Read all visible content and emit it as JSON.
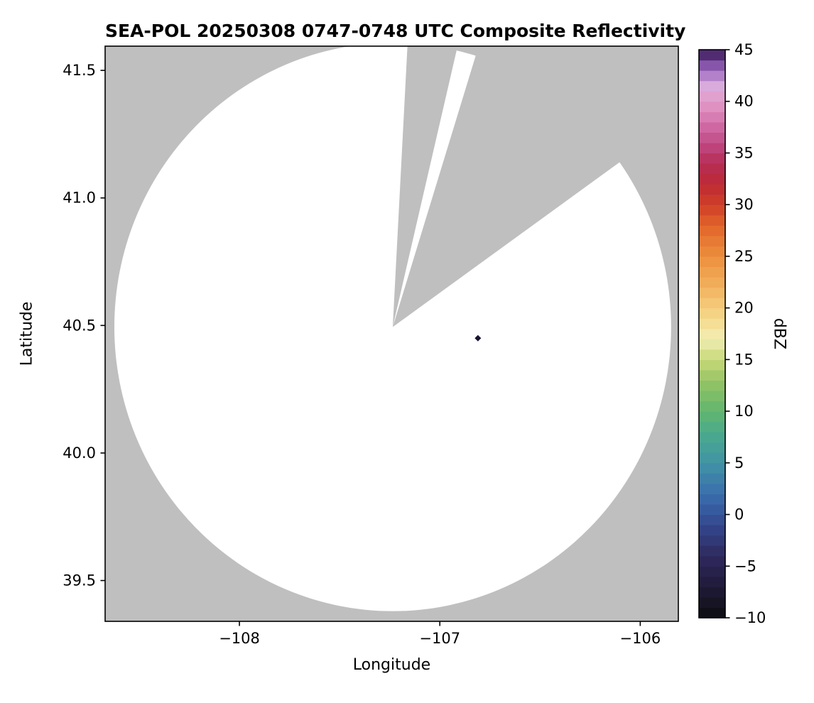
{
  "chart_data": {
    "type": "heatmap",
    "title": "SEA-POL 20250308 0747-0748 UTC Composite Reflectivity",
    "xlabel": "Longitude",
    "ylabel": "Latitude",
    "xlim": [
      -108.67,
      -105.81
    ],
    "ylim": [
      39.34,
      41.595
    ],
    "xticks": [
      -108,
      -107,
      -106
    ],
    "xtick_labels": [
      "−108",
      "−107",
      "−106"
    ],
    "yticks": [
      39.5,
      40.0,
      40.5,
      41.0,
      41.5
    ],
    "ytick_labels": [
      "39.5",
      "40.0",
      "40.5",
      "41.0",
      "41.5"
    ],
    "no_data_color": "#bfbfbf",
    "axis_color": "#000000",
    "radar": {
      "center_lon": -107.235,
      "center_lat": 40.494,
      "radius_lon_deg": 1.389,
      "radius_lat_deg": 1.114,
      "coverage_color": "#ffffff",
      "blocked_sectors_screen_deg": [
        [
          3,
          13
        ],
        [
          17,
          54
        ]
      ],
      "marker": {
        "lon": -106.81,
        "lat": 40.45,
        "color": "#16142f"
      }
    },
    "colorbar": {
      "label": "dBZ",
      "min": -10,
      "max": 45,
      "ticks": [
        -10,
        -5,
        0,
        5,
        10,
        15,
        20,
        25,
        30,
        35,
        40,
        45
      ],
      "tick_labels": [
        "−10",
        "−5",
        "0",
        "5",
        "10",
        "15",
        "20",
        "25",
        "30",
        "35",
        "40",
        "45"
      ],
      "stops": [
        {
          "v": -10,
          "c": "#0d0d10"
        },
        {
          "v": -7,
          "c": "#201a38"
        },
        {
          "v": -4,
          "c": "#2e2a5e"
        },
        {
          "v": -1,
          "c": "#34478f"
        },
        {
          "v": 2,
          "c": "#3a6fae"
        },
        {
          "v": 5,
          "c": "#4093a4"
        },
        {
          "v": 8,
          "c": "#4bab8b"
        },
        {
          "v": 10,
          "c": "#61b56e"
        },
        {
          "v": 13,
          "c": "#97c465"
        },
        {
          "v": 15,
          "c": "#c8d977"
        },
        {
          "v": 17,
          "c": "#f0eeb4"
        },
        {
          "v": 19,
          "c": "#f6d98b"
        },
        {
          "v": 22,
          "c": "#f2b25f"
        },
        {
          "v": 25,
          "c": "#ec8f3d"
        },
        {
          "v": 28,
          "c": "#e1642a"
        },
        {
          "v": 30,
          "c": "#cf3f28"
        },
        {
          "v": 32,
          "c": "#bd2b35"
        },
        {
          "v": 34,
          "c": "#b62c55"
        },
        {
          "v": 36,
          "c": "#c04b86"
        },
        {
          "v": 38,
          "c": "#d472ab"
        },
        {
          "v": 40,
          "c": "#e39cc9"
        },
        {
          "v": 41.5,
          "c": "#d9abdc"
        },
        {
          "v": 43,
          "c": "#9e6cc0"
        },
        {
          "v": 44,
          "c": "#6f3f96"
        },
        {
          "v": 45,
          "c": "#35184d"
        }
      ]
    }
  }
}
